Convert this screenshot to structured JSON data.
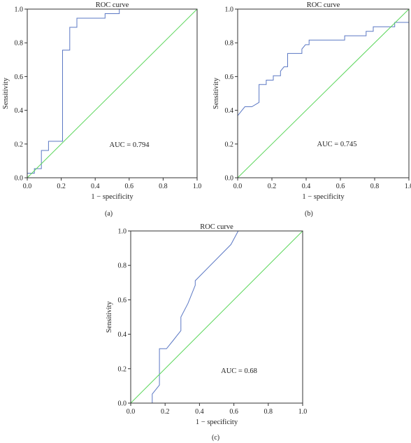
{
  "chart_data": [
    {
      "type": "line",
      "title": "ROC curve",
      "xlabel": "1 − specificity",
      "ylabel": "Sensitivity",
      "xlim": [
        0,
        1
      ],
      "ylim": [
        0,
        1
      ],
      "xticks": [
        "0.0",
        "0.2",
        "0.4",
        "0.6",
        "0.8",
        "1.0"
      ],
      "yticks": [
        "0.0",
        "0.2",
        "0.4",
        "0.6",
        "0.8",
        "1.0"
      ],
      "annotation": "AUC = 0.794",
      "caption": "(a)",
      "grid": false,
      "series": [
        {
          "color": "#5b78c4",
          "points": [
            [
              0,
              0
            ],
            [
              0,
              0.027
            ],
            [
              0.042,
              0.027
            ],
            [
              0.042,
              0.054
            ],
            [
              0.083,
              0.054
            ],
            [
              0.083,
              0.162
            ],
            [
              0.125,
              0.162
            ],
            [
              0.125,
              0.216
            ],
            [
              0.208,
              0.216
            ],
            [
              0.208,
              0.757
            ],
            [
              0.25,
              0.757
            ],
            [
              0.25,
              0.892
            ],
            [
              0.292,
              0.892
            ],
            [
              0.292,
              0.946
            ],
            [
              0.458,
              0.946
            ],
            [
              0.458,
              0.973
            ],
            [
              0.542,
              0.973
            ],
            [
              0.542,
              1.0
            ],
            [
              1.0,
              1.0
            ]
          ]
        },
        {
          "color": "#5cd65c",
          "points": [
            [
              0,
              0
            ],
            [
              1,
              1
            ]
          ]
        }
      ]
    },
    {
      "type": "line",
      "title": "ROC curve",
      "xlabel": "1 − specificity",
      "ylabel": "Sensitivity",
      "xlim": [
        0,
        1
      ],
      "ylim": [
        0,
        1
      ],
      "xticks": [
        "0.0",
        "0.2",
        "0.4",
        "0.6",
        "0.8",
        "1.0"
      ],
      "yticks": [
        "0.0",
        "0.2",
        "0.4",
        "0.6",
        "0.8",
        "1.0"
      ],
      "annotation": "AUC = 0.745",
      "caption": "(b)",
      "grid": false,
      "series": [
        {
          "color": "#5b78c4",
          "points": [
            [
              0,
              0.368
            ],
            [
              0.042,
              0.421
            ],
            [
              0.083,
              0.421
            ],
            [
              0.125,
              0.447
            ],
            [
              0.125,
              0.553
            ],
            [
              0.167,
              0.553
            ],
            [
              0.167,
              0.579
            ],
            [
              0.208,
              0.579
            ],
            [
              0.208,
              0.605
            ],
            [
              0.25,
              0.605
            ],
            [
              0.25,
              0.632
            ],
            [
              0.271,
              0.658
            ],
            [
              0.292,
              0.658
            ],
            [
              0.292,
              0.737
            ],
            [
              0.375,
              0.737
            ],
            [
              0.375,
              0.763
            ],
            [
              0.396,
              0.789
            ],
            [
              0.417,
              0.789
            ],
            [
              0.417,
              0.816
            ],
            [
              0.625,
              0.816
            ],
            [
              0.625,
              0.842
            ],
            [
              0.75,
              0.842
            ],
            [
              0.75,
              0.868
            ],
            [
              0.792,
              0.868
            ],
            [
              0.792,
              0.895
            ],
            [
              0.917,
              0.895
            ],
            [
              0.917,
              0.921
            ],
            [
              1.0,
              0.921
            ]
          ]
        },
        {
          "color": "#5cd65c",
          "points": [
            [
              0,
              0
            ],
            [
              1,
              1
            ]
          ]
        }
      ]
    },
    {
      "type": "line",
      "title": "ROC curve",
      "xlabel": "1 − specificity",
      "ylabel": "Sensitivity",
      "xlim": [
        0,
        1
      ],
      "ylim": [
        0,
        1
      ],
      "xticks": [
        "0.0",
        "0.2",
        "0.4",
        "0.6",
        "0.8",
        "1.0"
      ],
      "yticks": [
        "0.0",
        "0.2",
        "0.4",
        "0.6",
        "0.8",
        "1.0"
      ],
      "annotation": "AUC = 0.68",
      "caption": "(c)",
      "grid": false,
      "series": [
        {
          "color": "#5b78c4",
          "points": [
            [
              0.125,
              0
            ],
            [
              0.125,
              0.053
            ],
            [
              0.167,
              0.105
            ],
            [
              0.167,
              0.316
            ],
            [
              0.208,
              0.316
            ],
            [
              0.25,
              0.368
            ],
            [
              0.292,
              0.421
            ],
            [
              0.292,
              0.5
            ],
            [
              0.333,
              0.579
            ],
            [
              0.375,
              0.684
            ],
            [
              0.375,
              0.711
            ],
            [
              0.583,
              0.921
            ],
            [
              0.625,
              1.0
            ]
          ]
        },
        {
          "color": "#5cd65c",
          "points": [
            [
              0,
              0
            ],
            [
              1,
              1
            ]
          ]
        }
      ]
    }
  ]
}
